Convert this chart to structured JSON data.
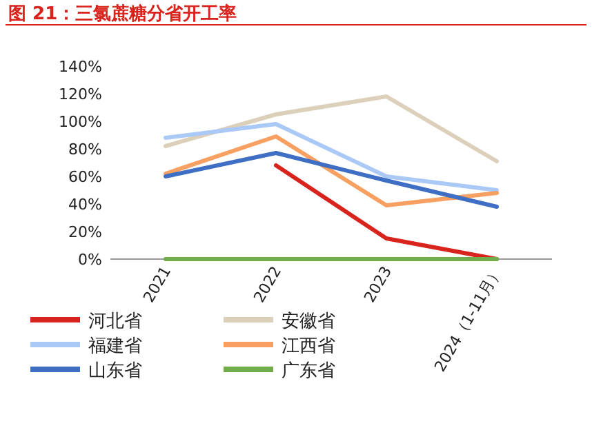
{
  "chart_data": {
    "type": "line",
    "title": "图 21：三氯蔗糖分省开工率",
    "categories": [
      "2021",
      "2022",
      "2023",
      "2024（1-11月）"
    ],
    "series": [
      {
        "name": "河北省",
        "color": "#d9231d",
        "values": [
          null,
          68,
          15,
          0
        ]
      },
      {
        "name": "安徽省",
        "color": "#dcd0bb",
        "values": [
          82,
          105,
          118,
          71
        ]
      },
      {
        "name": "福建省",
        "color": "#aac9f6",
        "values": [
          88,
          98,
          60,
          50
        ]
      },
      {
        "name": "江西省",
        "color": "#f7a062",
        "values": [
          62,
          89,
          39,
          48
        ]
      },
      {
        "name": "山东省",
        "color": "#3f6fc4",
        "values": [
          60,
          77,
          57,
          38
        ]
      },
      {
        "name": "广东省",
        "color": "#6fae4a",
        "values": [
          0,
          0,
          0,
          0
        ]
      }
    ],
    "ylim": [
      0,
      140
    ],
    "yticks": [
      {
        "value": 0,
        "label": "0%"
      },
      {
        "value": 20,
        "label": "20%"
      },
      {
        "value": 40,
        "label": "40%"
      },
      {
        "value": 60,
        "label": "60%"
      },
      {
        "value": 80,
        "label": "80%"
      },
      {
        "value": 100,
        "label": "100%"
      },
      {
        "value": 120,
        "label": "120%"
      },
      {
        "value": 140,
        "label": "140%"
      }
    ],
    "grid": false,
    "legend": "bottom",
    "marker": "none",
    "line_style": "solid"
  }
}
